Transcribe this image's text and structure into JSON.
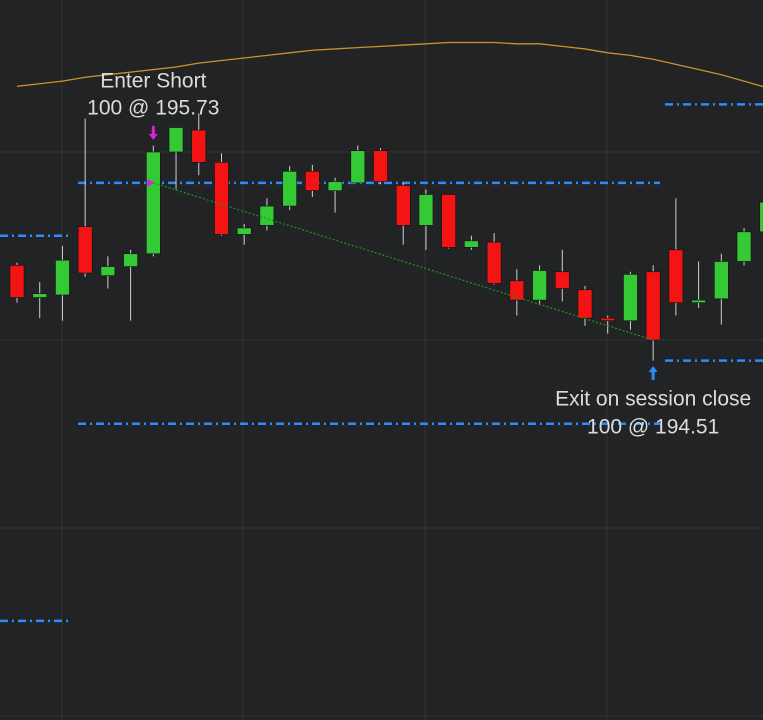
{
  "chart_data": {
    "type": "candlestick",
    "ylim": [
      191.56,
      197.15
    ],
    "colors": {
      "up": "#36c936",
      "down": "#f41414",
      "wick": "#d0d0d0"
    },
    "open": [
      195.09,
      194.84,
      194.86,
      195.39,
      195.01,
      195.08,
      195.18,
      195.97,
      196.14,
      195.89,
      195.33,
      195.4,
      195.55,
      195.82,
      195.67,
      195.73,
      195.98,
      195.71,
      195.4,
      195.64,
      195.23,
      195.27,
      194.97,
      194.82,
      195.04,
      194.9,
      194.68,
      194.66,
      195.04,
      195.21,
      194.8,
      194.83,
      195.12,
      195.35
    ],
    "high": [
      195.11,
      194.96,
      195.24,
      196.23,
      195.16,
      195.21,
      196.02,
      196.16,
      196.27,
      195.96,
      195.41,
      195.61,
      195.86,
      195.87,
      195.77,
      196.02,
      196.0,
      195.73,
      195.68,
      195.64,
      195.32,
      195.34,
      195.06,
      195.09,
      195.21,
      194.93,
      194.7,
      195.04,
      195.09,
      195.61,
      195.12,
      195.18,
      195.38,
      195.61
    ],
    "low": [
      194.8,
      194.68,
      194.66,
      195.0,
      194.91,
      194.66,
      195.16,
      195.68,
      195.79,
      195.32,
      195.25,
      195.36,
      195.52,
      195.62,
      195.5,
      195.73,
      195.72,
      195.25,
      195.21,
      195.22,
      195.21,
      194.94,
      194.7,
      194.78,
      194.81,
      194.62,
      194.56,
      194.59,
      194.35,
      194.7,
      194.76,
      194.63,
      195.09,
      195.32
    ],
    "close": [
      194.84,
      194.87,
      195.13,
      195.03,
      195.08,
      195.18,
      195.97,
      196.16,
      195.89,
      195.33,
      195.38,
      195.55,
      195.82,
      195.67,
      195.74,
      195.98,
      195.74,
      195.4,
      195.64,
      195.23,
      195.28,
      194.95,
      194.82,
      195.05,
      194.91,
      194.68,
      194.66,
      195.02,
      194.51,
      194.8,
      194.82,
      195.12,
      195.35,
      195.58
    ],
    "ma": {
      "color": "#c8922c",
      "values": [
        196.48,
        196.5,
        196.52,
        196.55,
        196.57,
        196.59,
        196.61,
        196.63,
        196.66,
        196.68,
        196.7,
        196.72,
        196.74,
        196.76,
        196.77,
        196.78,
        196.79,
        196.8,
        196.81,
        196.82,
        196.82,
        196.82,
        196.81,
        196.81,
        196.79,
        196.77,
        196.74,
        196.72,
        196.69,
        196.65,
        196.61,
        196.57,
        196.52,
        196.47
      ]
    },
    "levels": {
      "color": "#2a8cff",
      "sessions": [
        [
          195.32,
          192.33
        ],
        [
          195.73,
          193.86
        ],
        [
          196.34,
          194.35
        ]
      ]
    },
    "entry": {
      "label": "Enter Short",
      "detail": "100 @ 195.73",
      "price": 195.73,
      "color": "#e020e0"
    },
    "exit": {
      "label": "Exit on session close",
      "detail": "100 @ 194.51",
      "price": 194.51,
      "color": "#2a8cff"
    }
  }
}
